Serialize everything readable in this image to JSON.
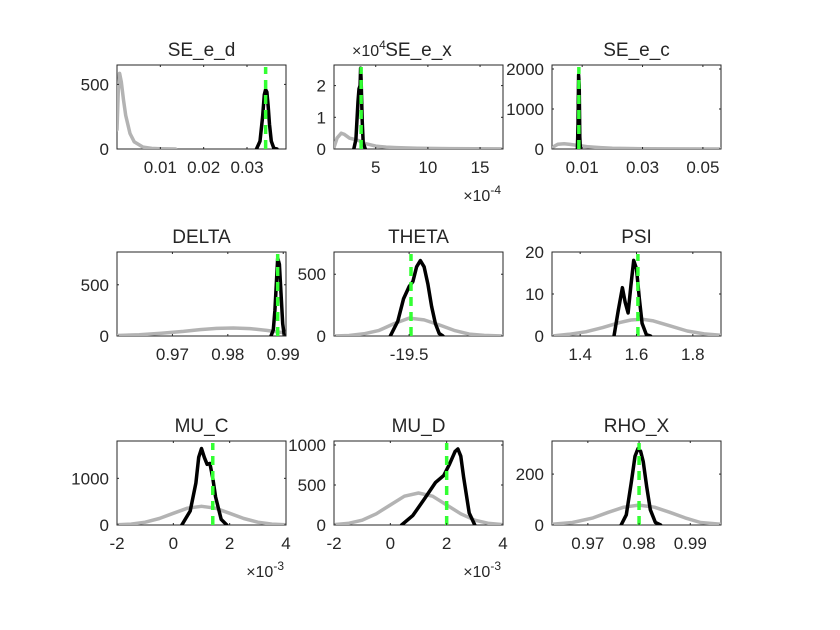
{
  "colors": {
    "prior": "#b3b3b3",
    "posterior": "#000000",
    "mode": "#33ff33",
    "axis": "#262626"
  },
  "chart_data": [
    {
      "type": "line",
      "title": "SE_e_d",
      "xlim": [
        0,
        0.039
      ],
      "ylim": [
        0,
        650
      ],
      "xticks": [
        0.01,
        0.02,
        0.03
      ],
      "xtick_labels": [
        "0.01",
        "0.02",
        "0.03"
      ],
      "yticks": [
        0,
        500
      ],
      "ytick_labels": [
        "0",
        "500"
      ],
      "prior": {
        "x": [
          0,
          0.0003,
          0.0006,
          0.001,
          0.0015,
          0.002,
          0.003,
          0.004,
          0.006,
          0.008,
          0.01,
          0.012,
          0.0135
        ],
        "y": [
          150,
          450,
          585,
          520,
          380,
          260,
          120,
          55,
          15,
          5,
          2,
          0.5,
          0
        ]
      },
      "posterior": {
        "x": [
          0.0322,
          0.033,
          0.0336,
          0.034,
          0.0343,
          0.0346,
          0.0349,
          0.0352,
          0.0356,
          0.0362,
          0.0369
        ],
        "y": [
          0,
          60,
          250,
          420,
          460,
          440,
          330,
          190,
          60,
          5,
          0
        ]
      },
      "mode_x": 0.0343
    },
    {
      "type": "line",
      "title": "SE_e_x",
      "xlim": [
        0.0001,
        0.00172
      ],
      "ylim": [
        0,
        26500
      ],
      "xticks": [
        0.0005,
        0.001,
        0.0015
      ],
      "xtick_labels": [
        "5",
        "10",
        "15"
      ],
      "yticks": [
        0,
        10000,
        20000
      ],
      "ytick_labels": [
        "0",
        "1",
        "2"
      ],
      "y_multiplier": [
        "×10",
        "4"
      ],
      "x_multiplier": [
        "×10",
        "-4"
      ],
      "prior": {
        "x": [
          0.0001,
          0.00013,
          0.00017,
          0.0002,
          0.00025,
          0.0003,
          0.00035,
          0.0004,
          0.0005,
          0.0006,
          0.0007,
          0.0009,
          0.0012,
          0.0017
        ],
        "y": [
          500,
          3500,
          5000,
          4600,
          3400,
          3000,
          2500,
          1700,
          900,
          600,
          450,
          250,
          120,
          30
        ]
      },
      "posterior": {
        "x": [
          0.00029,
          0.00031,
          0.00033,
          0.00034,
          0.00035,
          0.000355,
          0.00036,
          0.00037,
          0.00038,
          0.0004
        ],
        "y": [
          0,
          3000,
          15000,
          19000,
          20000,
          25500,
          22000,
          9000,
          2000,
          0
        ]
      },
      "mode_x": 0.00036
    },
    {
      "type": "line",
      "title": "SE_e_c",
      "xlim": [
        0,
        0.056
      ],
      "ylim": [
        0,
        2100
      ],
      "xticks": [
        0.01,
        0.03,
        0.05
      ],
      "xtick_labels": [
        "0.01",
        "0.03",
        "0.05"
      ],
      "yticks": [
        0,
        1000,
        2000
      ],
      "ytick_labels": [
        "0",
        "1000",
        "2000"
      ],
      "prior": {
        "x": [
          0,
          0.001,
          0.002,
          0.004,
          0.006,
          0.008,
          0.01,
          0.012,
          0.016,
          0.02,
          0.03,
          0.04,
          0.056
        ],
        "y": [
          20,
          80,
          120,
          130,
          115,
          95,
          75,
          55,
          35,
          20,
          8,
          3,
          1
        ]
      },
      "posterior": {
        "x": [
          0.0084,
          0.0086,
          0.0088,
          0.009,
          0.0092,
          0.0094
        ],
        "y": [
          0,
          600,
          1850,
          1600,
          300,
          0
        ]
      },
      "mode_x": 0.0089
    },
    {
      "type": "line",
      "title": "DELTA",
      "xlim": [
        0.96,
        0.9905
      ],
      "ylim": [
        0,
        820
      ],
      "xticks": [
        0.97,
        0.98,
        0.99
      ],
      "xtick_labels": [
        "0.97",
        "0.98",
        "0.99"
      ],
      "yticks": [
        0,
        500
      ],
      "ytick_labels": [
        "0",
        "500"
      ],
      "prior": {
        "x": [
          0.96,
          0.964,
          0.968,
          0.972,
          0.975,
          0.978,
          0.981,
          0.984,
          0.987,
          0.99,
          0.9905
        ],
        "y": [
          5,
          12,
          26,
          45,
          62,
          74,
          78,
          72,
          55,
          32,
          28
        ]
      },
      "posterior": {
        "x": [
          0.9878,
          0.9882,
          0.9885,
          0.9888,
          0.989,
          0.9893,
          0.9896,
          0.9899,
          0.9902
        ],
        "y": [
          0,
          60,
          250,
          560,
          760,
          700,
          420,
          120,
          0
        ]
      },
      "mode_x": 0.989
    },
    {
      "type": "line",
      "title": "THETA",
      "xlim": [
        -19.9,
        -19.0
      ],
      "ylim": [
        0,
        680
      ],
      "xticks": [
        -19.5
      ],
      "xtick_labels": [
        "-19.5"
      ],
      "yticks": [
        0,
        500
      ],
      "ytick_labels": [
        "0",
        "500"
      ],
      "prior": {
        "x": [
          -19.9,
          -19.82,
          -19.74,
          -19.66,
          -19.58,
          -19.5,
          -19.42,
          -19.34,
          -19.26,
          -19.18,
          -19.1,
          -19.0
        ],
        "y": [
          0,
          4,
          18,
          45,
          100,
          145,
          130,
          90,
          45,
          15,
          5,
          0
        ]
      },
      "posterior": {
        "x": [
          -19.6,
          -19.56,
          -19.53,
          -19.5,
          -19.48,
          -19.46,
          -19.44,
          -19.42,
          -19.4,
          -19.38,
          -19.36,
          -19.34,
          -19.32
        ],
        "y": [
          0,
          120,
          300,
          400,
          440,
          560,
          610,
          560,
          420,
          240,
          100,
          20,
          0
        ]
      },
      "mode_x": -19.49
    },
    {
      "type": "line",
      "title": "PSI",
      "xlim": [
        1.3,
        1.9
      ],
      "ylim": [
        0,
        20
      ],
      "xticks": [
        1.4,
        1.6,
        1.8
      ],
      "xtick_labels": [
        "1.4",
        "1.6",
        "1.8"
      ],
      "yticks": [
        0,
        10,
        20
      ],
      "ytick_labels": [
        "0",
        "10",
        "20"
      ],
      "prior": {
        "x": [
          1.3,
          1.36,
          1.42,
          1.48,
          1.54,
          1.58,
          1.62,
          1.66,
          1.72,
          1.78,
          1.84,
          1.9
        ],
        "y": [
          0,
          0.4,
          1.0,
          2.0,
          3.2,
          3.8,
          4.0,
          3.6,
          2.4,
          1.2,
          0.5,
          0.2
        ]
      },
      "posterior": {
        "x": [
          1.52,
          1.535,
          1.55,
          1.56,
          1.57,
          1.58,
          1.59,
          1.6,
          1.61,
          1.62,
          1.635,
          1.65
        ],
        "y": [
          0,
          6,
          11.5,
          8,
          5.5,
          12,
          18,
          16,
          9,
          3,
          0.3,
          0
        ]
      },
      "mode_x": 1.605
    },
    {
      "type": "line",
      "title": "MU_C",
      "xlim": [
        -0.002,
        0.004
      ],
      "ylim": [
        0,
        1800
      ],
      "xticks": [
        -0.002,
        0,
        0.002,
        0.004
      ],
      "xtick_labels": [
        "-2",
        "0",
        "2",
        "4"
      ],
      "yticks": [
        0,
        1000
      ],
      "ytick_labels": [
        "0",
        "1000"
      ],
      "x_multiplier": [
        "×10",
        "-3"
      ],
      "prior": {
        "x": [
          -0.002,
          -0.0015,
          -0.001,
          -0.0005,
          0,
          0.0005,
          0.001,
          0.0015,
          0.002,
          0.0025,
          0.003,
          0.0035,
          0.004
        ],
        "y": [
          5,
          20,
          60,
          140,
          250,
          360,
          400,
          360,
          250,
          140,
          60,
          20,
          5
        ]
      },
      "posterior": {
        "x": [
          0.0003,
          0.0006,
          0.0008,
          0.0009,
          0.001,
          0.0011,
          0.0012,
          0.0013,
          0.0014,
          0.0015,
          0.0017,
          0.0019
        ],
        "y": [
          0,
          300,
          900,
          1450,
          1640,
          1450,
          1300,
          1320,
          1000,
          600,
          120,
          0
        ]
      },
      "mode_x": 0.0014
    },
    {
      "type": "line",
      "title": "MU_D",
      "xlim": [
        -0.002,
        0.004
      ],
      "ylim": [
        0,
        1050
      ],
      "xticks": [
        -0.002,
        0,
        0.002,
        0.004
      ],
      "xtick_labels": [
        "-2",
        "0",
        "2",
        "4"
      ],
      "yticks": [
        0,
        500,
        1000
      ],
      "ytick_labels": [
        "0",
        "500",
        "1000"
      ],
      "x_multiplier": [
        "×10",
        "-3"
      ],
      "prior": {
        "x": [
          -0.002,
          -0.0015,
          -0.001,
          -0.0005,
          0,
          0.0005,
          0.001,
          0.0015,
          0.002,
          0.0025,
          0.003,
          0.0035,
          0.004
        ],
        "y": [
          5,
          20,
          60,
          140,
          250,
          360,
          400,
          360,
          250,
          140,
          60,
          20,
          5
        ]
      },
      "posterior": {
        "x": [
          0.0004,
          0.0008,
          0.0012,
          0.0016,
          0.0019,
          0.0021,
          0.0023,
          0.0024,
          0.0025,
          0.0026,
          0.0028,
          0.003
        ],
        "y": [
          0,
          120,
          320,
          530,
          620,
          760,
          920,
          950,
          860,
          600,
          150,
          0
        ]
      },
      "mode_x": 0.002
    },
    {
      "type": "line",
      "title": "RHO_X",
      "xlim": [
        0.963,
        0.996
      ],
      "ylim": [
        0,
        330
      ],
      "xticks": [
        0.97,
        0.98,
        0.99
      ],
      "xtick_labels": [
        "0.97",
        "0.98",
        "0.99"
      ],
      "yticks": [
        0,
        200
      ],
      "ytick_labels": [
        "0",
        "200"
      ],
      "prior": {
        "x": [
          0.963,
          0.967,
          0.971,
          0.974,
          0.977,
          0.98,
          0.983,
          0.986,
          0.989,
          0.992,
          0.996
        ],
        "y": [
          3,
          10,
          28,
          50,
          70,
          78,
          70,
          50,
          28,
          10,
          3
        ]
      },
      "posterior": {
        "x": [
          0.9765,
          0.9775,
          0.9785,
          0.9792,
          0.9798,
          0.9803,
          0.9808,
          0.9815,
          0.9822,
          0.9832,
          0.9842
        ],
        "y": [
          0,
          40,
          170,
          270,
          300,
          290,
          250,
          150,
          60,
          10,
          0
        ]
      },
      "mode_x": 0.98
    }
  ]
}
